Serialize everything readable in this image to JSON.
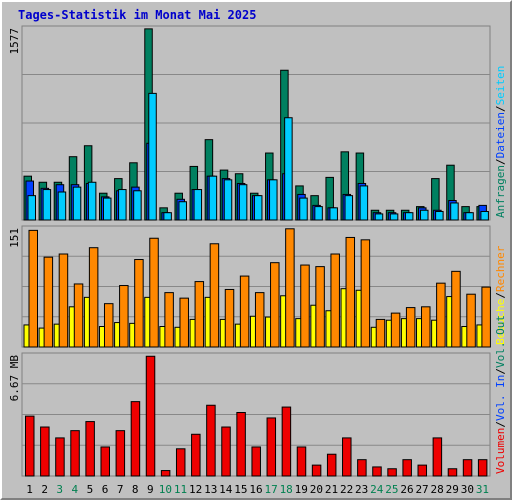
{
  "title": "Tages-Statistik im Monat Mai 2025",
  "colors": {
    "background": "#c0c0c0",
    "anfragen": "#008060",
    "dateien": "#0040ff",
    "seiten": "#00ccff",
    "besuche": "#ffff00",
    "rechner": "#ff8800",
    "volumen": "#ee0000",
    "title": "#0000cc",
    "day_weekday": "#000000",
    "day_weekend": "#008050"
  },
  "chart_data": [
    {
      "type": "bar",
      "panel": "top",
      "max_label": "1577",
      "ylim": [
        0,
        1577
      ],
      "legend": [
        {
          "label": "Anfragen",
          "color": "#008060"
        },
        {
          "label": "Dateien",
          "color": "#0040ff"
        },
        {
          "label": "Seiten",
          "color": "#00ccff"
        }
      ],
      "categories": [
        "1",
        "2",
        "3",
        "4",
        "5",
        "6",
        "7",
        "8",
        "9",
        "10",
        "11",
        "12",
        "13",
        "14",
        "15",
        "16",
        "17",
        "18",
        "19",
        "20",
        "21",
        "22",
        "23",
        "24",
        "25",
        "26",
        "27",
        "28",
        "29",
        "30",
        "31"
      ],
      "series": [
        {
          "name": "Anfragen",
          "values": [
            360,
            310,
            310,
            520,
            610,
            220,
            340,
            470,
            1570,
            100,
            220,
            440,
            660,
            410,
            380,
            220,
            550,
            1230,
            280,
            200,
            350,
            560,
            550,
            80,
            80,
            80,
            110,
            340,
            450,
            110,
            110
          ]
        },
        {
          "name": "Dateien",
          "values": [
            320,
            260,
            290,
            290,
            300,
            190,
            240,
            270,
            630,
            60,
            170,
            250,
            360,
            340,
            300,
            200,
            330,
            380,
            210,
            120,
            100,
            210,
            300,
            60,
            60,
            60,
            100,
            80,
            160,
            60,
            120
          ]
        },
        {
          "name": "Seiten",
          "values": [
            200,
            250,
            230,
            270,
            310,
            180,
            250,
            240,
            1040,
            60,
            150,
            250,
            360,
            330,
            290,
            200,
            330,
            840,
            180,
            110,
            100,
            200,
            280,
            50,
            50,
            60,
            80,
            70,
            140,
            60,
            70
          ]
        }
      ]
    },
    {
      "type": "bar",
      "panel": "middle",
      "max_label": "151",
      "ylim": [
        0,
        151
      ],
      "legend": [
        {
          "label": "Besuche",
          "color": "#ffff00"
        },
        {
          "label": "Rechner",
          "color": "#ff8800"
        }
      ],
      "categories": [
        "1",
        "2",
        "3",
        "4",
        "5",
        "6",
        "7",
        "8",
        "9",
        "10",
        "11",
        "12",
        "13",
        "14",
        "15",
        "16",
        "17",
        "18",
        "19",
        "20",
        "21",
        "22",
        "23",
        "24",
        "25",
        "26",
        "27",
        "28",
        "29",
        "30",
        "31"
      ],
      "series": [
        {
          "name": "Besuche",
          "values": [
            28,
            24,
            29,
            51,
            63,
            26,
            31,
            30,
            63,
            26,
            25,
            35,
            63,
            35,
            29,
            39,
            38,
            65,
            36,
            53,
            46,
            74,
            72,
            25,
            34,
            36,
            36,
            34,
            64,
            26,
            28
          ]
        },
        {
          "name": "Rechner",
          "values": [
            148,
            114,
            118,
            80,
            126,
            55,
            78,
            111,
            138,
            69,
            62,
            83,
            131,
            73,
            90,
            69,
            107,
            150,
            104,
            102,
            118,
            139,
            136,
            35,
            43,
            50,
            51,
            81,
            96,
            67,
            76
          ]
        }
      ]
    },
    {
      "type": "bar",
      "panel": "bottom",
      "max_label": "6.67 MB",
      "ylim": [
        0,
        6.67
      ],
      "legend": [
        {
          "label": "Volumen",
          "color": "#ee0000"
        },
        {
          "label": "Vol. In",
          "color": "#0040ff"
        },
        {
          "label": "Vol. Out",
          "color": "#008060"
        }
      ],
      "categories": [
        "1",
        "2",
        "3",
        "4",
        "5",
        "6",
        "7",
        "8",
        "9",
        "10",
        "11",
        "12",
        "13",
        "14",
        "15",
        "16",
        "17",
        "18",
        "19",
        "20",
        "21",
        "22",
        "23",
        "24",
        "25",
        "26",
        "27",
        "28",
        "29",
        "30",
        "31"
      ],
      "series": [
        {
          "name": "Volumen",
          "values": [
            3.3,
            2.7,
            2.1,
            2.5,
            3.0,
            1.6,
            2.5,
            4.1,
            6.6,
            0.3,
            1.5,
            2.3,
            3.9,
            2.7,
            3.5,
            1.6,
            3.2,
            3.8,
            1.6,
            0.6,
            1.2,
            2.1,
            0.9,
            0.5,
            0.4,
            0.9,
            0.6,
            2.1,
            0.4,
            0.9,
            0.9
          ]
        }
      ]
    }
  ],
  "weekends": [
    3,
    4,
    10,
    11,
    17,
    18,
    24,
    25,
    31
  ]
}
